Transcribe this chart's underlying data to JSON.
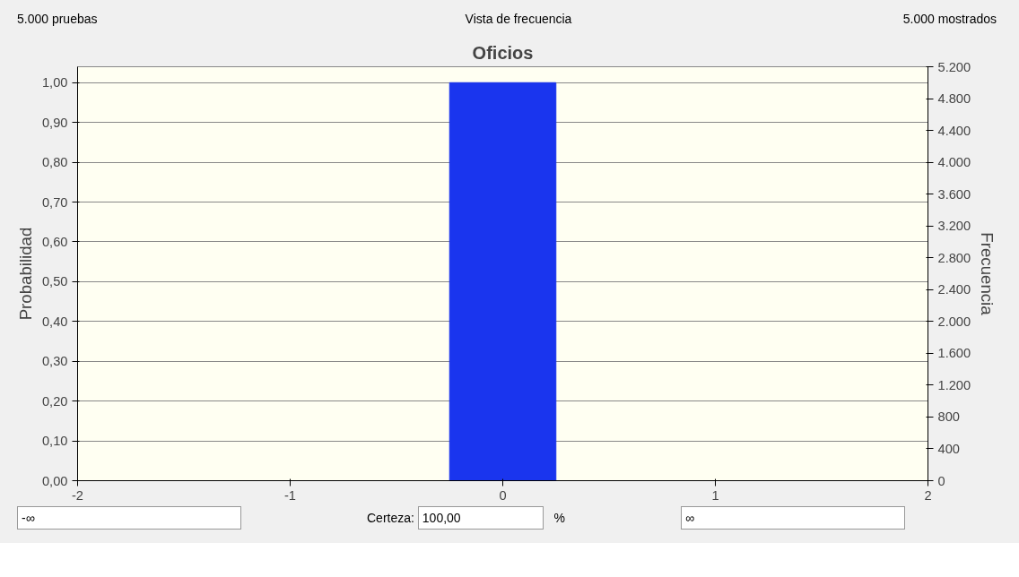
{
  "chart_data": {
    "type": "histogram",
    "title": "Oficios",
    "ylabel": "Probabilidad",
    "y2label": "Frecuencia",
    "annotations": [
      "5.000 pruebas",
      "Vista de frecuencia",
      "5.000 mostrados",
      "-∞",
      "Certeza:",
      "100,00",
      "%",
      "∞"
    ],
    "bins": [
      -0.25,
      0.25
    ],
    "values": [
      1.0
    ],
    "color": "#1a35ee",
    "xlim": [
      -2,
      2
    ],
    "xticks": [
      -2,
      -1,
      0,
      1,
      2
    ],
    "ylim": [
      0,
      1.04
    ],
    "yticks": [
      {
        "value": 0,
        "label": "0,00"
      },
      {
        "value": 0.1,
        "label": "0,10"
      },
      {
        "value": 0.2,
        "label": "0,20"
      },
      {
        "value": 0.3,
        "label": "0,30"
      },
      {
        "value": 0.4,
        "label": "0,40"
      },
      {
        "value": 0.5,
        "label": "0,50"
      },
      {
        "value": 0.6,
        "label": "0,60"
      },
      {
        "value": 0.7,
        "label": "0,70"
      },
      {
        "value": 0.8,
        "label": "0,80"
      },
      {
        "value": 0.9,
        "label": "0,90"
      },
      {
        "value": 1.0,
        "label": "1,00"
      }
    ],
    "y2lim": [
      0,
      5200
    ],
    "y2ticks": [
      0,
      {
        "value": 400,
        "label": "400"
      },
      {
        "value": 800,
        "label": "800"
      },
      {
        "value": 1200,
        "label": "1.200"
      },
      {
        "value": 1600,
        "label": "1.600"
      },
      {
        "value": 2000,
        "label": "2.000"
      },
      {
        "value": 2400,
        "label": "2.400"
      },
      {
        "value": 2800,
        "label": "2.800"
      },
      {
        "value": 3200,
        "label": "3.200"
      },
      {
        "value": 3600,
        "label": "3.600"
      },
      {
        "value": 4000,
        "label": "4.000"
      },
      {
        "value": 4400,
        "label": "4.400"
      },
      {
        "value": 4800,
        "label": "4.800"
      },
      {
        "value": 5200,
        "label": "5.200"
      }
    ],
    "grid": "y"
  }
}
